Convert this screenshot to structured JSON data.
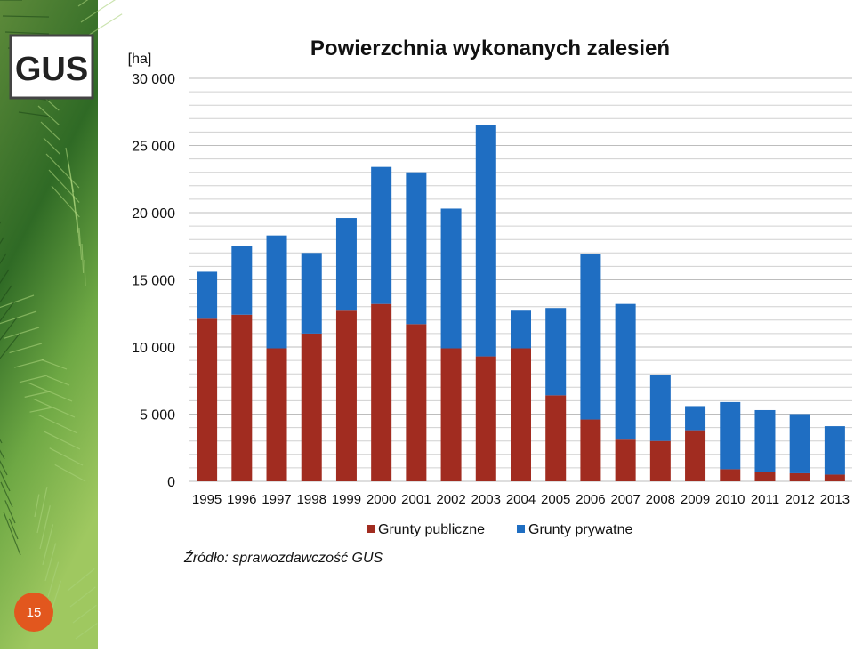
{
  "logo": "GUS",
  "page_number": "15",
  "chart_data": {
    "type": "stacked-bar",
    "title": "Powierzchnia wykonanych zalesień",
    "y_unit": "[ha]",
    "source": "Źródło: sprawozdawczość GUS",
    "categories": [
      "1995",
      "1996",
      "1997",
      "1998",
      "1999",
      "2000",
      "2001",
      "2002",
      "2003",
      "2004",
      "2005",
      "2006",
      "2007",
      "2008",
      "2009",
      "2010",
      "2011",
      "2012",
      "2013"
    ],
    "series": [
      {
        "name": "Grunty publiczne",
        "color": "#a12c20",
        "values": [
          12100,
          12400,
          9900,
          11000,
          12700,
          13200,
          11700,
          9900,
          9300,
          9900,
          6400,
          4600,
          3100,
          3000,
          3800,
          900,
          700,
          600,
          500
        ]
      },
      {
        "name": "Grunty prywatne",
        "color": "#1f6ec2",
        "values": [
          3500,
          5100,
          8400,
          6000,
          6900,
          10200,
          11300,
          10400,
          17200,
          2800,
          6500,
          12300,
          10100,
          4900,
          1800,
          5000,
          4600,
          4400,
          3600
        ]
      }
    ],
    "ylim": [
      0,
      30000
    ],
    "yticks": [
      0,
      {
        "value": 5000,
        "label": "5 000"
      },
      {
        "value": 10000,
        "label": "10 000"
      },
      {
        "value": 15000,
        "label": "15 000"
      },
      {
        "value": 20000,
        "label": "20 000"
      },
      {
        "value": 25000,
        "label": "25 000"
      },
      {
        "value": 30000,
        "label": "30 000"
      }
    ],
    "yminorticks": [
      1000,
      2000,
      3000,
      4000,
      6000,
      7000,
      8000,
      9000,
      11000,
      12000,
      13000,
      14000,
      16000,
      17000,
      18000,
      19000,
      21000,
      22000,
      23000,
      24000,
      26000,
      27000,
      28000,
      29000
    ],
    "grid": true,
    "legend": "bottom"
  }
}
